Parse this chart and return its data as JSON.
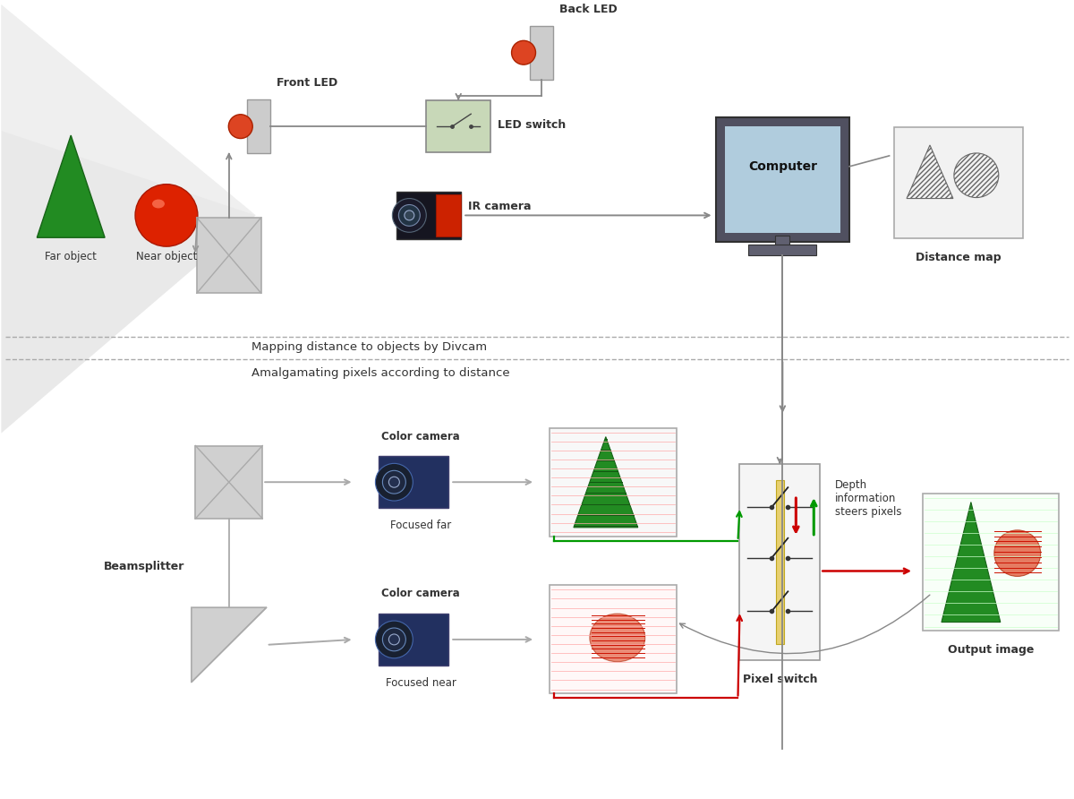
{
  "bg_color": "#f0f0f0",
  "colors": {
    "white": "#ffffff",
    "text_dark": "#333333",
    "gray_light": "#cccccc",
    "gray_mid": "#aaaaaa",
    "gray_dark": "#888888",
    "green_obj": "#2d8b2d",
    "red_obj": "#dd2200",
    "led_body": "#cccccc",
    "led_bulb": "#dd4422",
    "switch_fill": "#c8d8b8",
    "ir_body": "#1a1a2a",
    "ir_red": "#cc2200",
    "cam_body": "#223060",
    "computer_body": "#555566",
    "computer_screen": "#b8d8e8",
    "dist_map_fill": "#f0f0f0",
    "beam_fill": "#e8e8e8",
    "ps_fill": "#f5f5f5",
    "ps_bar": "#e8d080",
    "green_arrow": "#009900",
    "red_arrow": "#cc0000",
    "dashed": "#aaaaaa",
    "box_far_fill": "#f8f8f8",
    "box_near_fill": "#fff8f8",
    "output_fill": "#f8fff8"
  },
  "labels": {
    "far_object": "Far object",
    "near_object": "Near object",
    "front_led": "Front LED",
    "back_led": "Back LED",
    "led_switch": "LED switch",
    "ir_camera": "IR camera",
    "computer": "Computer",
    "distance_map": "Distance map",
    "mapping": "Mapping distance to objects by Divcam",
    "amalgamating": "Amalgamating pixels according to distance",
    "beamsplitter": "Beamsplitter",
    "color_camera": "Color camera",
    "focused_far": "Focused far",
    "focused_near": "Focused near",
    "depth_info": "Depth\ninformation\nsteers pixels",
    "pixel_switch": "Pixel switch",
    "output_image": "Output image"
  }
}
